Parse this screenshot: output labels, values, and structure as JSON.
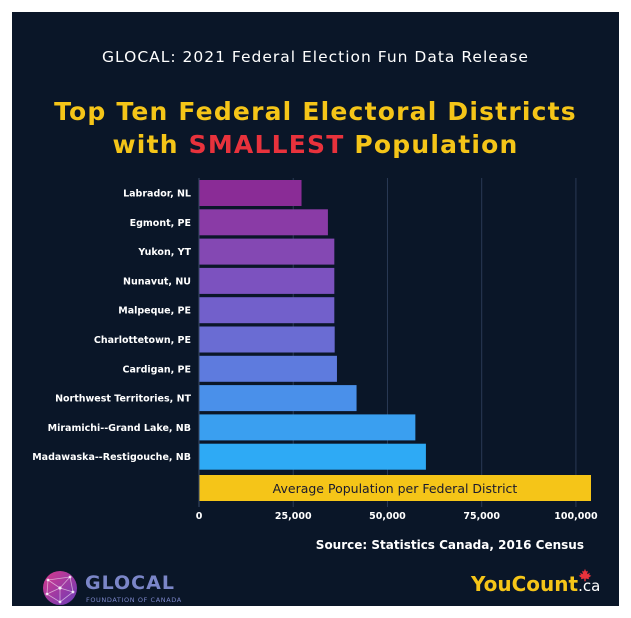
{
  "header": {
    "supertitle": "GLOCAL: 2021 Federal Election Fun Data Release",
    "title_line1": "Top Ten Federal Electoral Districts",
    "title_line2_pre": "with ",
    "title_line2_highlight": "SMALLEST",
    "title_line2_post": " Population"
  },
  "colors": {
    "background": "#0a1628",
    "title": "#f5c518",
    "highlight": "#e8323c",
    "average_bar": "#f5c518",
    "gridline": "#2a3a55"
  },
  "chart_data": {
    "type": "bar",
    "orientation": "horizontal",
    "categories": [
      "Labrador, NL",
      "Egmont, PE",
      "Yukon, YT",
      "Nunavut, NU",
      "Malpeque, PE",
      "Charlottetown, PE",
      "Cardigan, PE",
      "Northwest Territories, NT",
      "Miramichi--Grand Lake, NB",
      "Madawaska--Restigouche, NB"
    ],
    "values": [
      27200,
      34200,
      35900,
      35900,
      35900,
      36000,
      36600,
      41800,
      57400,
      60200
    ],
    "bar_colors": [
      "#8a2c96",
      "#8a3ba6",
      "#8448b3",
      "#7c52bf",
      "#7260cb",
      "#6a6cd3",
      "#5e7bde",
      "#4a90ea",
      "#3a9ff0",
      "#2eaaf5"
    ],
    "reference_bar": {
      "label": "Average Population per Federal District",
      "value": 104000
    },
    "xlim": [
      0,
      104000
    ],
    "xticks": [
      0,
      25000,
      50000,
      75000,
      100000
    ],
    "xtick_labels": [
      "0",
      "25,000",
      "50,000",
      "75,000",
      "100,000"
    ],
    "grid": true
  },
  "footer": {
    "source": "Source: Statistics Canada, 2016 Census",
    "glocal_name": "GLOCAL",
    "glocal_sub": "FOUNDATION OF CANADA",
    "youcount_main": "YouCount",
    "youcount_suffix": ".ca"
  }
}
